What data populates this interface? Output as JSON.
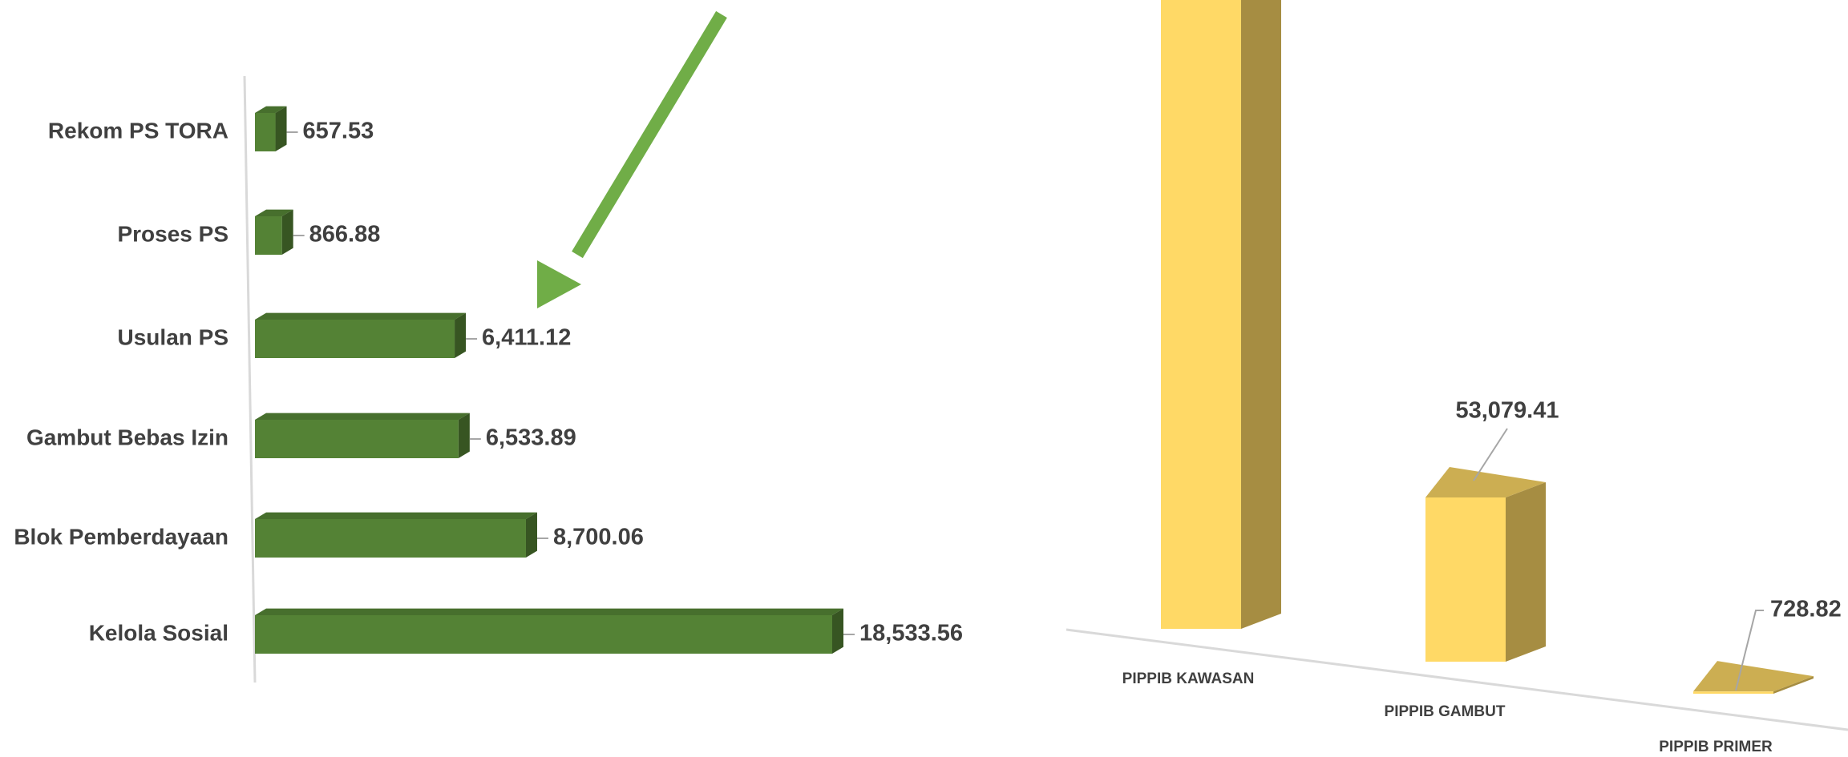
{
  "chart_data": [
    {
      "type": "hbar3d",
      "categories": [
        "Rekom PS TORA",
        "Proses PS",
        "Usulan PS",
        "Gambut Bebas Izin",
        "Blok Pemberdayaan",
        "Kelola Sosial"
      ],
      "values": [
        657.53,
        866.88,
        6411.12,
        6533.89,
        8700.06,
        18533.56
      ],
      "value_labels": [
        "657.53",
        "866.88",
        "6,411.12",
        "6,533.89",
        "8,700.06",
        "18,533.56"
      ],
      "color": "#548235"
    },
    {
      "type": "vbar3d",
      "categories": [
        "PIPPIB KAWASAN",
        "PIPPIB GAMBUT",
        "PIPPIB PRIMER"
      ],
      "values": [
        220000,
        53079.41,
        728.82
      ],
      "value_labels": [
        null,
        "53,079.41",
        "728.82"
      ],
      "color": "#ffd966"
    }
  ]
}
